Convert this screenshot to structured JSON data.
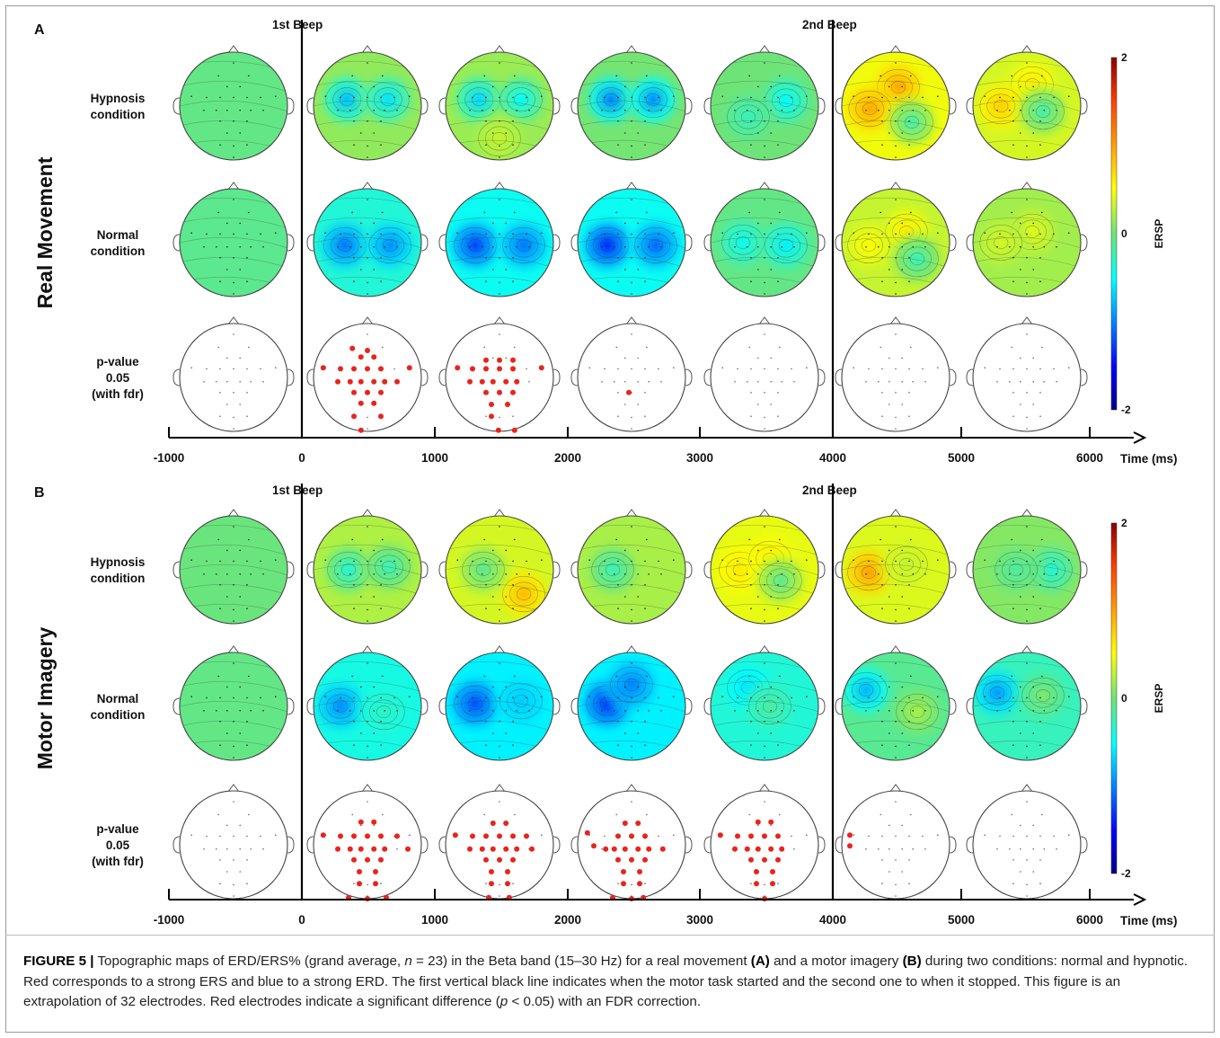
{
  "panels": [
    {
      "letter": "A",
      "side_label": "Real Movement",
      "beep1": "1st Beep",
      "beep2": "2nd Beep",
      "row_labels": [
        [
          "Hypnosis",
          "condition"
        ],
        [
          "Normal",
          "condition"
        ],
        [
          "p-value",
          "0.05",
          "(with fdr)"
        ]
      ],
      "ticks": [
        "-1000",
        "0",
        "1000",
        "2000",
        "3000",
        "4000",
        "5000",
        "6000"
      ],
      "axis_label": "Time (ms)",
      "colorbar": {
        "max": "2",
        "mid": "0",
        "min": "-2",
        "label": "ERSP"
      },
      "maps": [
        [
          {
            "bg": -0.05,
            "blobs": []
          },
          {
            "bg": 0.12,
            "blobs": [
              [
                -0.38,
                -0.12,
                -0.75
              ],
              [
                0.38,
                -0.12,
                -0.6
              ]
            ]
          },
          {
            "bg": 0.15,
            "blobs": [
              [
                -0.38,
                -0.12,
                -0.65
              ],
              [
                0.4,
                -0.12,
                -0.5
              ],
              [
                0,
                0.6,
                0.3
              ]
            ]
          },
          {
            "bg": 0.02,
            "blobs": [
              [
                -0.38,
                -0.12,
                -1.0
              ],
              [
                0.4,
                -0.12,
                -0.95
              ]
            ]
          },
          {
            "bg": 0.0,
            "blobs": [
              [
                0.4,
                -0.1,
                -0.5
              ],
              [
                -0.3,
                0.2,
                -0.25
              ]
            ]
          },
          {
            "bg": 0.45,
            "blobs": [
              [
                0.05,
                -0.35,
                0.95
              ],
              [
                -0.48,
                0.05,
                0.95
              ],
              [
                0.3,
                0.3,
                -0.2
              ]
            ]
          },
          {
            "bg": 0.35,
            "blobs": [
              [
                0.1,
                -0.4,
                0.6
              ],
              [
                -0.48,
                0.0,
                0.75
              ],
              [
                0.3,
                0.1,
                -0.2
              ]
            ]
          }
        ],
        [
          {
            "bg": -0.08,
            "blobs": []
          },
          {
            "bg": -0.35,
            "blobs": [
              [
                -0.42,
                0.05,
                -1.05
              ],
              [
                0.42,
                0.05,
                -0.95
              ]
            ]
          },
          {
            "bg": -0.45,
            "blobs": [
              [
                -0.45,
                0.05,
                -1.25
              ],
              [
                0.45,
                0.05,
                -1.05
              ]
            ]
          },
          {
            "bg": -0.45,
            "blobs": [
              [
                -0.45,
                0.05,
                -1.35
              ],
              [
                0.45,
                0.05,
                -1.1
              ]
            ]
          },
          {
            "bg": -0.05,
            "blobs": [
              [
                -0.4,
                0.0,
                -0.45
              ],
              [
                0.4,
                0.05,
                -0.55
              ]
            ]
          },
          {
            "bg": 0.3,
            "blobs": [
              [
                0.2,
                -0.2,
                0.6
              ],
              [
                -0.5,
                0.05,
                0.5
              ],
              [
                0.4,
                0.3,
                -0.25
              ]
            ]
          },
          {
            "bg": 0.18,
            "blobs": [
              [
                0.1,
                -0.2,
                0.4
              ],
              [
                -0.48,
                0.0,
                0.35
              ]
            ]
          }
        ]
      ],
      "pvals": [
        [],
        [
          "-0.28,-0.54",
          "0.0,-0.50",
          "-0.12,-0.38",
          "0.12,-0.38",
          "-0.82,-0.18",
          "-0.50,-0.16",
          "-0.25,-0.16",
          "0.0,-0.16",
          "0.25,-0.16",
          "0.78,-0.18",
          "-0.55,0.08",
          "-0.32,0.08",
          "-0.12,0.08",
          "0.12,0.08",
          "0.32,0.08",
          "0.55,0.08",
          "-0.25,0.28",
          "0.0,0.28",
          "0.25,0.28",
          "-0.12,0.48",
          "0.12,0.48",
          "-0.25,0.72",
          "0.25,0.72",
          "-0.12,0.98"
        ],
        [
          "-0.25,-0.32",
          "0.0,-0.32",
          "0.25,-0.32",
          "-0.78,-0.18",
          "-0.50,-0.16",
          "-0.25,-0.16",
          "0.0,-0.16",
          "0.25,-0.16",
          "0.78,-0.18",
          "-0.55,0.08",
          "-0.32,0.08",
          "-0.12,0.08",
          "0.12,0.08",
          "0.32,0.08",
          "-0.25,0.28",
          "0.0,0.28",
          "0.25,0.28",
          "-0.15,0.50",
          "0.15,0.50",
          "-0.15,0.72",
          "-0.02,0.98",
          "0.28,0.98"
        ],
        [
          "-0.05,0.28"
        ],
        [],
        [],
        []
      ]
    },
    {
      "letter": "B",
      "side_label": "Motor Imagery",
      "beep1": "1st Beep",
      "beep2": "2nd Beep",
      "row_labels": [
        [
          "Hypnosis",
          "condition"
        ],
        [
          "Normal",
          "condition"
        ],
        [
          "p-value",
          "0.05",
          "(with fdr)"
        ]
      ],
      "ticks": [
        "-1000",
        "0",
        "1000",
        "2000",
        "3000",
        "4000",
        "5000",
        "6000"
      ],
      "axis_label": "Time (ms)",
      "colorbar": {
        "max": "2",
        "mid": "0",
        "min": "-2",
        "label": "ERSP"
      },
      "maps": [
        [
          {
            "bg": -0.02,
            "blobs": []
          },
          {
            "bg": 0.22,
            "blobs": [
              [
                -0.35,
                0.0,
                -0.35
              ],
              [
                0.4,
                -0.05,
                -0.25
              ]
            ]
          },
          {
            "bg": 0.35,
            "blobs": [
              [
                0.45,
                0.45,
                0.85
              ],
              [
                -0.3,
                0.0,
                -0.1
              ]
            ]
          },
          {
            "bg": 0.2,
            "blobs": [
              [
                -0.35,
                0.0,
                -0.25
              ]
            ]
          },
          {
            "bg": 0.42,
            "blobs": [
              [
                -0.45,
                0.0,
                0.6
              ],
              [
                0.1,
                -0.2,
                0.55
              ],
              [
                0.3,
                0.2,
                -0.1
              ]
            ]
          },
          {
            "bg": 0.38,
            "blobs": [
              [
                -0.5,
                0.05,
                1.0
              ],
              [
                0.2,
                -0.1,
                0.3
              ]
            ]
          },
          {
            "bg": 0.08,
            "blobs": [
              [
                0.45,
                0.0,
                -0.35
              ],
              [
                -0.2,
                0.0,
                -0.15
              ]
            ]
          }
        ],
        [
          {
            "bg": -0.05,
            "blobs": []
          },
          {
            "bg": -0.4,
            "blobs": [
              [
                -0.5,
                0.0,
                -0.95
              ],
              [
                0.3,
                0.1,
                -0.3
              ]
            ]
          },
          {
            "bg": -0.55,
            "blobs": [
              [
                -0.45,
                -0.05,
                -1.2
              ],
              [
                0.4,
                -0.1,
                -0.7
              ]
            ]
          },
          {
            "bg": -0.55,
            "blobs": [
              [
                -0.45,
                -0.05,
                -1.3
              ],
              [
                0.0,
                -0.4,
                -1.0
              ]
            ]
          },
          {
            "bg": -0.35,
            "blobs": [
              [
                -0.3,
                -0.35,
                -0.6
              ],
              [
                0.1,
                0.0,
                -0.15
              ]
            ]
          },
          {
            "bg": -0.1,
            "blobs": [
              [
                -0.55,
                -0.3,
                -0.8
              ],
              [
                0.4,
                0.1,
                0.2
              ]
            ]
          },
          {
            "bg": -0.25,
            "blobs": [
              [
                -0.55,
                -0.25,
                -0.9
              ],
              [
                0.3,
                -0.2,
                0.05
              ]
            ]
          }
        ]
      ],
      "pvals": [
        [],
        [
          "-0.12,-0.42",
          "0.12,-0.42",
          "-0.82,-0.18",
          "-0.50,-0.16",
          "-0.25,-0.16",
          "0.0,-0.16",
          "0.25,-0.16",
          "0.55,-0.16",
          "-0.55,0.08",
          "-0.32,0.08",
          "-0.12,0.08",
          "0.12,0.08",
          "0.32,0.08",
          "0.75,0.08",
          "-0.25,0.28",
          "0.0,0.28",
          "0.25,0.28",
          "-0.15,0.50",
          "0.15,0.50",
          "-0.15,0.72",
          "0.15,0.72",
          "-0.35,0.98",
          "0.0,1.0",
          "0.35,0.98"
        ],
        [
          "-0.12,-0.40",
          "0.12,-0.40",
          "-0.82,-0.18",
          "-0.50,-0.16",
          "-0.25,-0.16",
          "0.0,-0.16",
          "0.25,-0.16",
          "0.50,-0.16",
          "-0.55,0.08",
          "-0.32,0.08",
          "-0.12,0.08",
          "0.12,0.08",
          "0.32,0.08",
          "0.60,0.08",
          "-0.25,0.28",
          "0.0,0.28",
          "0.25,0.28",
          "-0.15,0.50",
          "0.15,0.50",
          "-0.15,0.72",
          "0.15,0.72",
          "-0.20,0.98",
          "0.18,0.98"
        ],
        [
          "-0.82,-0.22",
          "-0.12,-0.40",
          "0.12,-0.40",
          "-0.70,0.02",
          "-0.25,-0.16",
          "0.0,-0.16",
          "0.25,-0.16",
          "-0.48,0.08",
          "-0.32,0.08",
          "-0.12,0.08",
          "0.12,0.08",
          "0.32,0.08",
          "0.58,0.08",
          "-0.25,0.28",
          "0.0,0.28",
          "0.25,0.28",
          "-0.15,0.50",
          "0.15,0.50",
          "-0.15,0.72",
          "0.15,0.72",
          "-0.35,0.98",
          "0.0,1.0",
          "0.22,0.98"
        ],
        [
          "-0.12,-0.42",
          "0.12,-0.42",
          "-0.82,-0.18",
          "-0.50,-0.16",
          "-0.25,-0.16",
          "0.0,-0.16",
          "0.25,-0.16",
          "-0.55,0.08",
          "-0.32,0.08",
          "-0.12,0.08",
          "0.12,0.08",
          "0.32,0.08",
          "-0.25,0.28",
          "0.0,0.28",
          "0.25,0.28",
          "-0.15,0.50",
          "0.15,0.50",
          "-0.15,0.72",
          "0.15,0.72",
          "0.0,1.0"
        ],
        [
          "-0.85,-0.18",
          "-0.85,0.02"
        ],
        []
      ]
    }
  ],
  "caption": {
    "figure_label": "FIGURE 5 |",
    "p1": " Topographic maps of ERD/ERS% (grand average, ",
    "n": "n",
    "p2": " = 23) in the Beta band (15–30 Hz) for a real movement ",
    "a": "(A)",
    "p3": " and a motor imagery ",
    "b": "(B)",
    "p4": " during two conditions: normal and hypnotic. Red corresponds to a strong ERS and blue to a strong ERD. The first vertical black line indicates when the motor task started and the second one to when it stopped. This figure is an extrapolation of 32 electrodes. Red electrodes indicate a significant difference (",
    "p": "p",
    "p5": " < 0.05) with an FDR correction."
  }
}
